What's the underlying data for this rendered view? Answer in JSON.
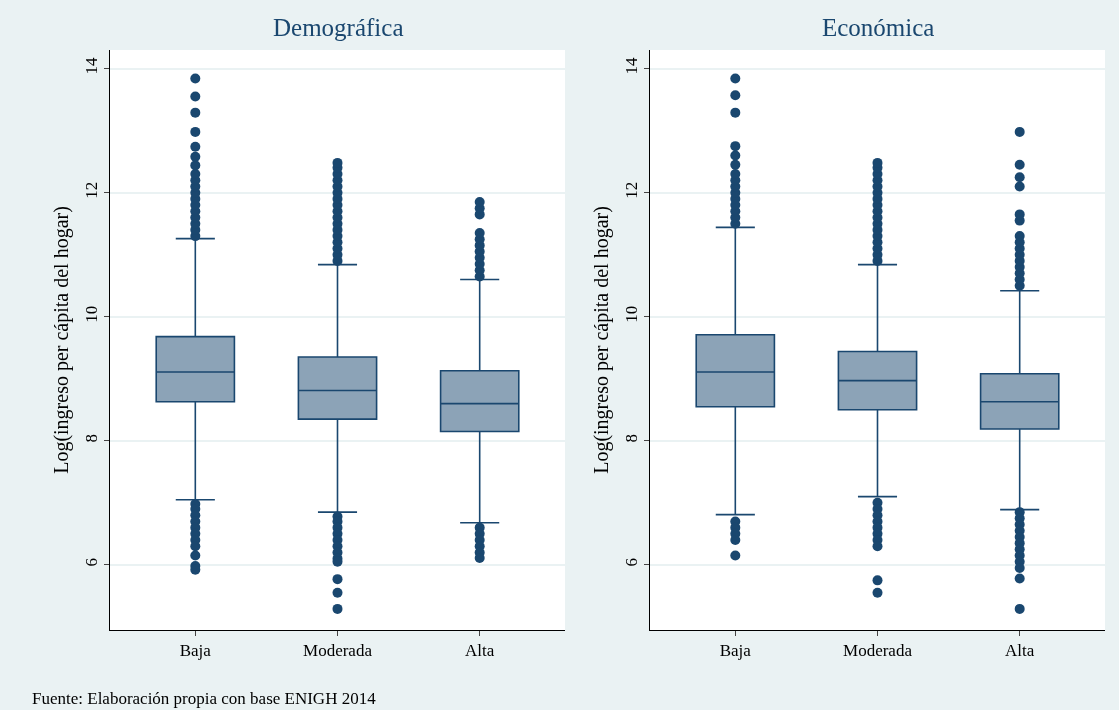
{
  "chart_data": [
    {
      "type": "box",
      "title": "Demográfica",
      "ylabel": "Log(ingreso per cápita del hogar)",
      "categories": [
        "Baja",
        "Moderada",
        "Alta"
      ],
      "ylim": [
        4.95,
        14.3
      ],
      "yticks": [
        6,
        8,
        10,
        12,
        14
      ],
      "grid": "y",
      "marker": "circle",
      "annotations": [
        "Fuente: Elaboración propia con base ENIGH 2014"
      ],
      "series": [
        {
          "color": "#1a476f",
          "boxes": [
            {
              "low": 7.05,
              "q1": 8.63,
              "median": 9.11,
              "q3": 9.68,
              "high": 11.26,
              "outliers": [
                11.3,
                11.4,
                11.5,
                11.6,
                11.7,
                11.8,
                11.9,
                12.0,
                12.1,
                12.2,
                12.3,
                12.44,
                12.58,
                12.74,
                12.98,
                13.29,
                13.55,
                13.84,
                6.98,
                6.9,
                6.8,
                6.7,
                6.6,
                6.5,
                6.4,
                6.3,
                6.15,
                5.98,
                5.92
              ]
            },
            {
              "low": 6.85,
              "q1": 8.35,
              "median": 8.81,
              "q3": 9.35,
              "high": 10.84,
              "outliers": [
                10.9,
                11.0,
                11.1,
                11.2,
                11.3,
                11.4,
                11.5,
                11.6,
                11.7,
                11.8,
                11.9,
                12.0,
                12.1,
                12.2,
                12.3,
                12.4,
                12.48,
                6.78,
                6.7,
                6.6,
                6.5,
                6.4,
                6.3,
                6.2,
                6.1,
                6.05,
                5.77,
                5.55,
                5.29
              ]
            },
            {
              "low": 6.68,
              "q1": 8.15,
              "median": 8.6,
              "q3": 9.13,
              "high": 10.6,
              "outliers": [
                10.65,
                10.75,
                10.85,
                10.95,
                11.05,
                11.15,
                11.25,
                11.35,
                11.65,
                11.75,
                11.85,
                6.6,
                6.5,
                6.4,
                6.3,
                6.2,
                6.11
              ]
            }
          ]
        }
      ]
    },
    {
      "type": "box",
      "title": "Económica",
      "ylabel": "Log(ingreso per cápita del hogar)",
      "categories": [
        "Baja",
        "Moderada",
        "Alta"
      ],
      "ylim": [
        4.95,
        14.3
      ],
      "yticks": [
        6,
        8,
        10,
        12,
        14
      ],
      "grid": "y",
      "marker": "circle",
      "series": [
        {
          "color": "#1a476f",
          "boxes": [
            {
              "low": 6.81,
              "q1": 8.55,
              "median": 9.11,
              "q3": 9.71,
              "high": 11.44,
              "outliers": [
                11.5,
                11.6,
                11.7,
                11.8,
                11.9,
                12.0,
                12.1,
                12.2,
                12.3,
                12.45,
                12.6,
                12.75,
                13.29,
                13.57,
                13.84,
                6.7,
                6.6,
                6.5,
                6.4,
                6.15
              ]
            },
            {
              "low": 7.1,
              "q1": 8.5,
              "median": 8.97,
              "q3": 9.44,
              "high": 10.84,
              "outliers": [
                10.9,
                11.0,
                11.1,
                11.2,
                11.3,
                11.4,
                11.5,
                11.6,
                11.7,
                11.8,
                11.9,
                12.0,
                12.1,
                12.2,
                12.3,
                12.4,
                12.48,
                7.0,
                6.9,
                6.8,
                6.7,
                6.6,
                6.5,
                6.4,
                6.3,
                5.75,
                5.55
              ]
            },
            {
              "low": 6.89,
              "q1": 8.19,
              "median": 8.63,
              "q3": 9.08,
              "high": 10.42,
              "outliers": [
                10.5,
                10.6,
                10.7,
                10.8,
                10.9,
                11.0,
                11.1,
                11.2,
                11.3,
                11.55,
                11.65,
                12.1,
                12.25,
                12.45,
                12.98,
                6.85,
                6.75,
                6.65,
                6.55,
                6.45,
                6.35,
                6.25,
                6.15,
                6.05,
                5.95,
                5.78,
                5.29
              ]
            }
          ]
        }
      ]
    }
  ]
}
